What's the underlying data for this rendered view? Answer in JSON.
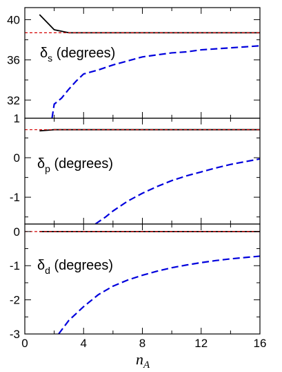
{
  "chart_data": [
    {
      "type": "line",
      "panel_symbol": "δ",
      "panel_subscript": "s",
      "panel_label_suffix": " (degrees)",
      "ylim": [
        30.2,
        41.2
      ],
      "yticks": [
        32,
        36,
        40
      ],
      "ytick_labels": [
        "32",
        "36",
        "40"
      ],
      "xlim": [
        0,
        16
      ],
      "series": [
        {
          "color": "#000000",
          "dash": "solid",
          "x": [
            1,
            2,
            3,
            4,
            5,
            6,
            8,
            10,
            12,
            14,
            16
          ],
          "y": [
            40.5,
            39.0,
            38.7,
            38.7,
            38.7,
            38.7,
            38.7,
            38.7,
            38.7,
            38.7,
            38.7
          ]
        },
        {
          "color": "#d40000",
          "dash": "dashed",
          "x": [
            0,
            16
          ],
          "y": [
            38.7,
            38.7
          ]
        },
        {
          "color": "#0000dd",
          "dash": "dashed",
          "x": [
            1.85,
            2.0,
            2.5,
            3.0,
            3.5,
            4.0,
            5.0,
            6.0,
            7.0,
            8.0,
            9.0,
            10.0,
            11.0,
            12.0,
            13.0,
            14.0,
            15.0,
            16.0
          ],
          "y": [
            30.2,
            31.6,
            32.2,
            33.1,
            33.9,
            34.6,
            35.0,
            35.5,
            35.9,
            36.3,
            36.5,
            36.7,
            36.8,
            37.0,
            37.1,
            37.2,
            37.3,
            37.4
          ]
        }
      ]
    },
    {
      "type": "line",
      "panel_symbol": "δ",
      "panel_subscript": "p",
      "panel_label_suffix": " (degrees)",
      "ylim": [
        -1.68,
        1.0
      ],
      "yticks": [
        -1,
        0,
        1
      ],
      "ytick_labels": [
        "-1",
        "0",
        "1"
      ],
      "xlim": [
        0,
        16
      ],
      "series": [
        {
          "color": "#000000",
          "dash": "solid",
          "x": [
            1,
            2,
            3,
            4,
            6,
            8,
            10,
            12,
            14,
            16
          ],
          "y": [
            0.68,
            0.71,
            0.71,
            0.71,
            0.71,
            0.71,
            0.71,
            0.71,
            0.71,
            0.71
          ]
        },
        {
          "color": "#d40000",
          "dash": "dashed",
          "x": [
            0,
            16
          ],
          "y": [
            0.71,
            0.71
          ]
        },
        {
          "color": "#0000dd",
          "dash": "dashed",
          "x": [
            4.8,
            5.5,
            6,
            7,
            8,
            9,
            10,
            11,
            12,
            13,
            14,
            15,
            16
          ],
          "y": [
            -1.68,
            -1.5,
            -1.35,
            -1.1,
            -0.9,
            -0.73,
            -0.58,
            -0.46,
            -0.36,
            -0.26,
            -0.17,
            -0.1,
            -0.03
          ]
        }
      ]
    },
    {
      "type": "line",
      "panel_symbol": "δ",
      "panel_subscript": "d",
      "panel_label_suffix": " (degrees)",
      "ylim": [
        -3.0,
        0.22
      ],
      "yticks": [
        -3,
        -2,
        -1,
        0
      ],
      "ytick_labels": [
        "-3",
        "-2",
        "-1",
        "0"
      ],
      "xlim": [
        0,
        16
      ],
      "xticks": [
        0,
        4,
        8,
        12,
        16
      ],
      "xtick_labels": [
        "0",
        "4",
        "8",
        "12",
        "16"
      ],
      "xlabel": "n",
      "xlabel_subscript": "A",
      "series": [
        {
          "color": "#000000",
          "dash": "solid",
          "x": [
            1,
            2,
            4,
            6,
            8,
            10,
            12,
            14,
            16
          ],
          "y": [
            0,
            0,
            0,
            0,
            0,
            0,
            0,
            0,
            0
          ]
        },
        {
          "color": "#d40000",
          "dash": "dashed",
          "x": [
            0,
            16
          ],
          "y": [
            0,
            0
          ]
        },
        {
          "color": "#0000dd",
          "dash": "dashed",
          "x": [
            2.3,
            3,
            4,
            5,
            6,
            7,
            8,
            9,
            10,
            11,
            12,
            13,
            14,
            15,
            16
          ],
          "y": [
            -3.0,
            -2.6,
            -2.2,
            -1.85,
            -1.6,
            -1.42,
            -1.28,
            -1.16,
            -1.06,
            -0.98,
            -0.91,
            -0.85,
            -0.8,
            -0.76,
            -0.72
          ]
        }
      ]
    }
  ]
}
